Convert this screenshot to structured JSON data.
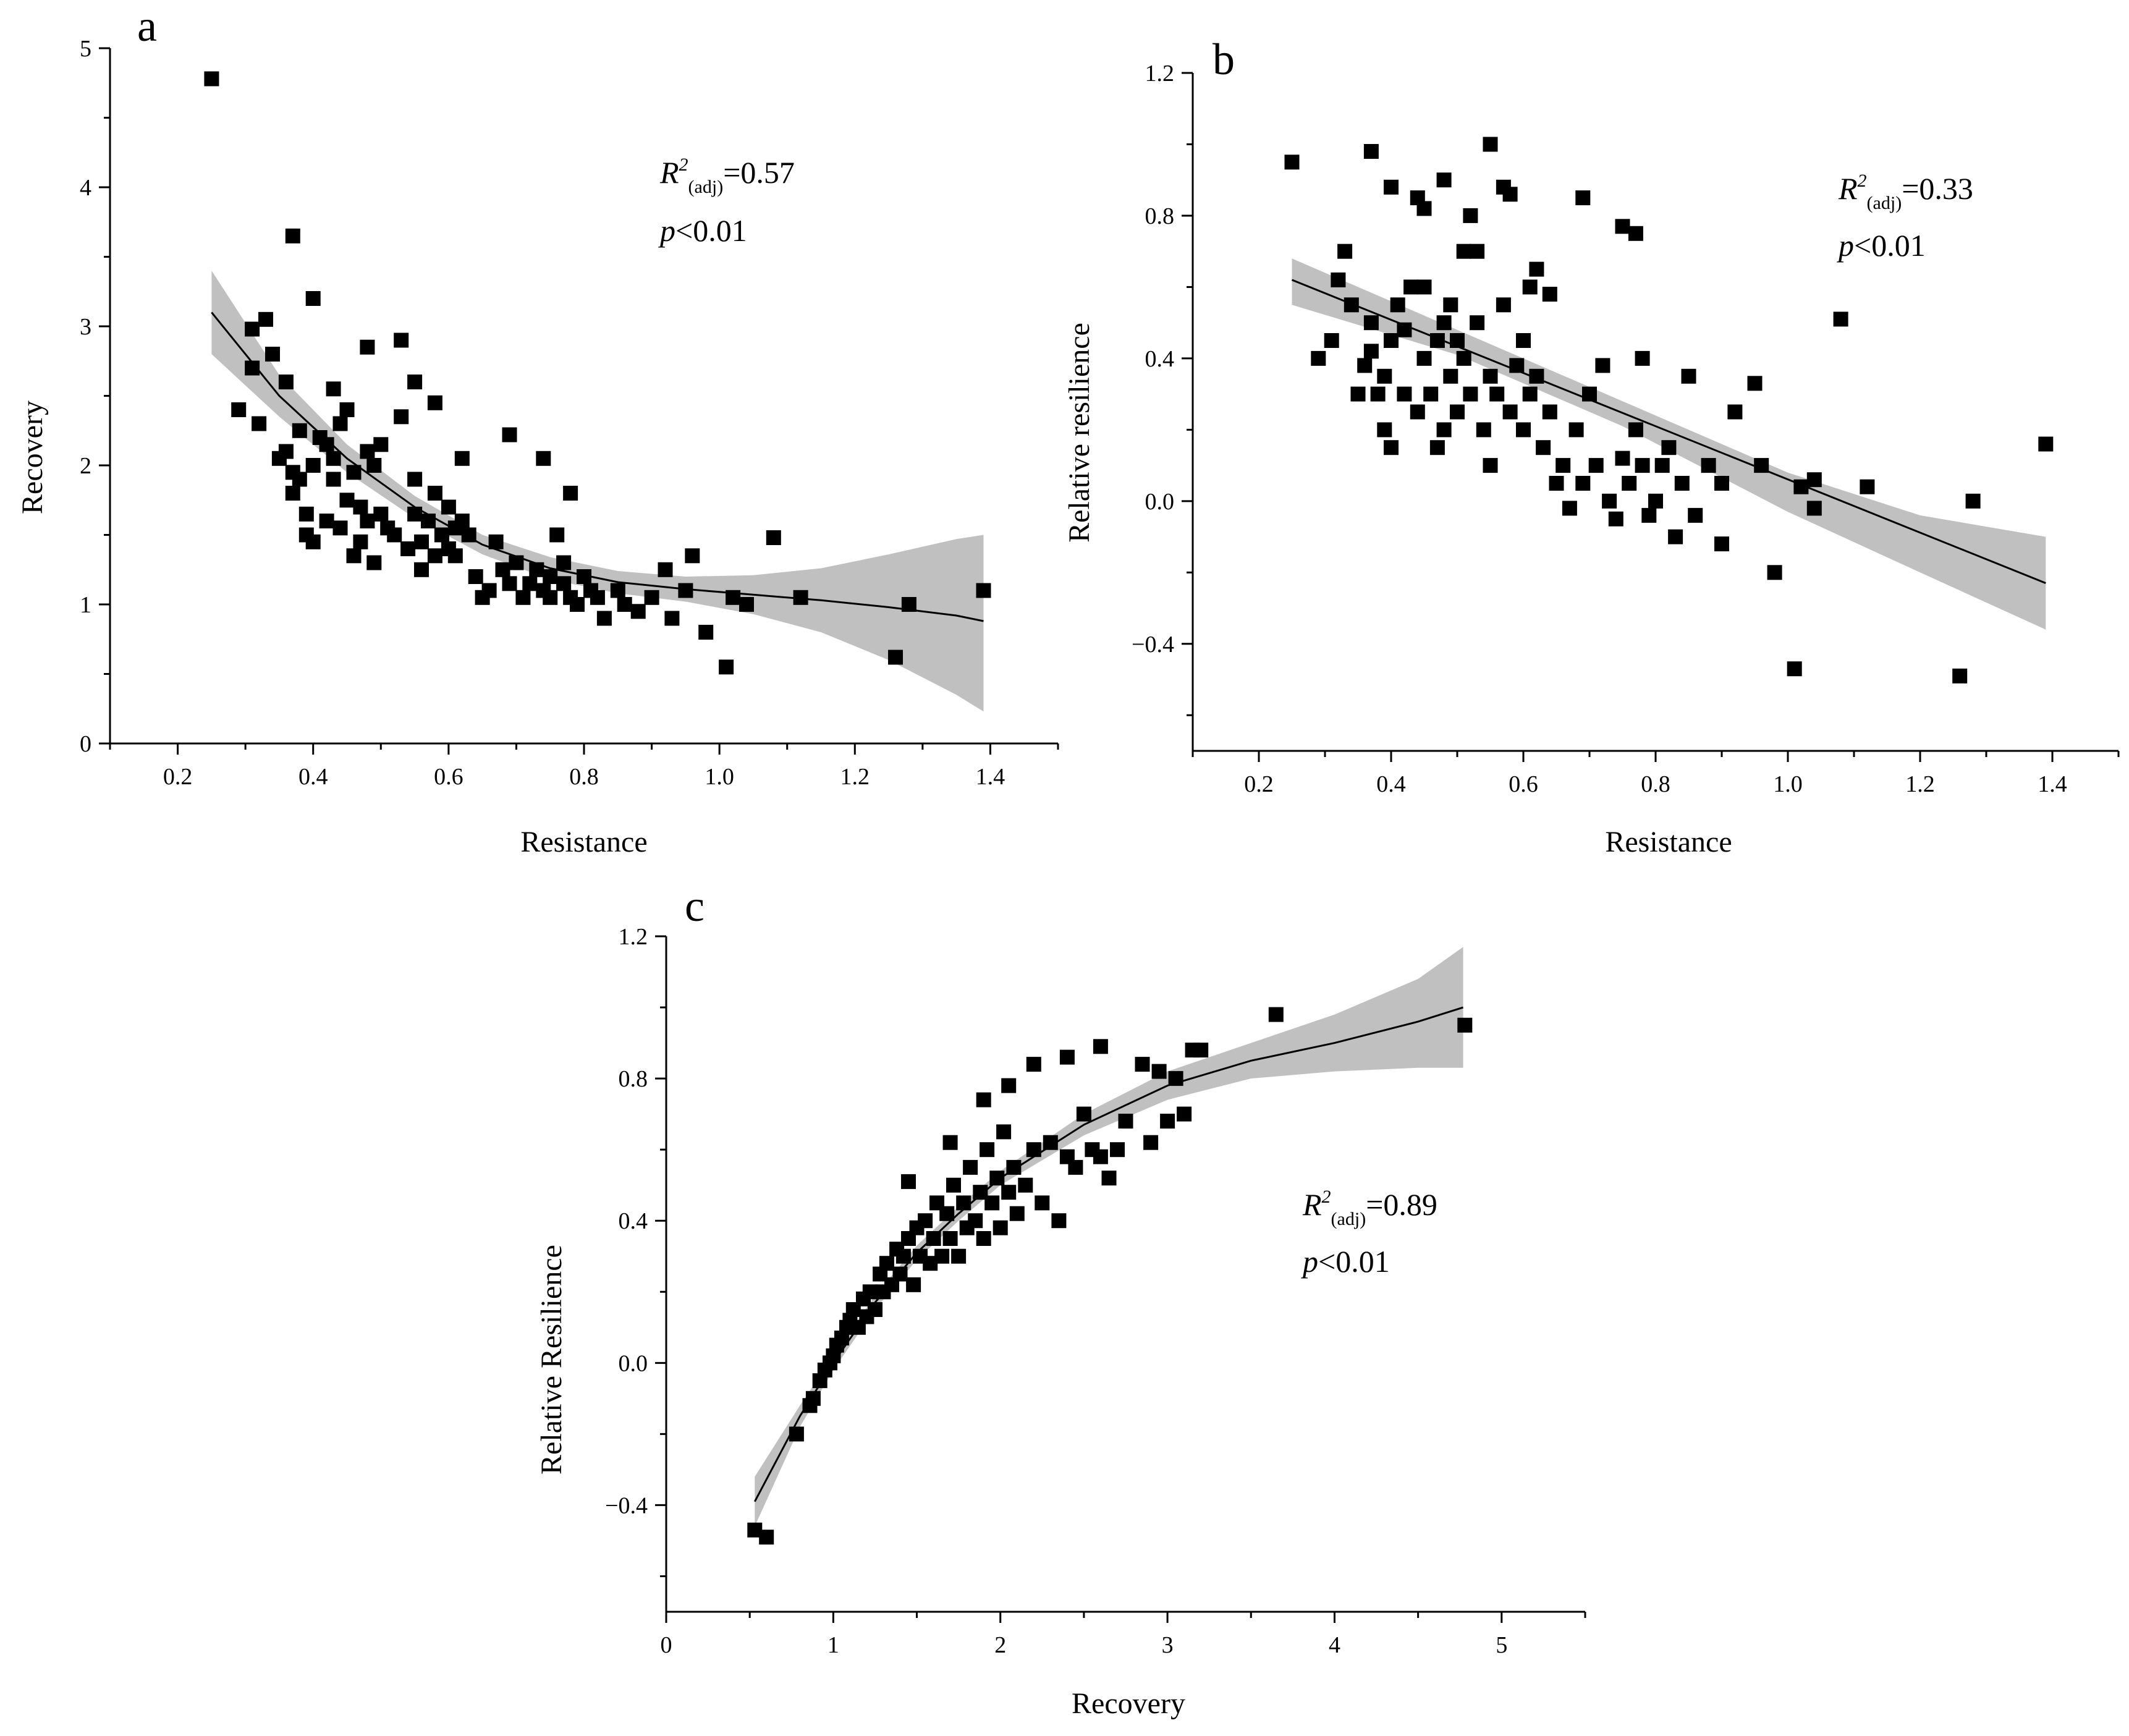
{
  "figure": {
    "colors": {
      "band": "#c0c0c0",
      "point": "#000000",
      "line": "#000000"
    },
    "panels": [
      {
        "id": "a",
        "label": "a",
        "type": "scatter",
        "xlabel": "Resistance",
        "ylabel": "Recovery",
        "xlim": [
          0.1,
          1.5
        ],
        "ylim": [
          0,
          5
        ],
        "xticks": [
          0.2,
          0.4,
          0.6,
          0.8,
          1.0,
          1.2,
          1.4
        ],
        "xtick_labels": [
          "0.2",
          "0.4",
          "0.6",
          "0.8",
          "1.0",
          "1.2",
          "1.4"
        ],
        "yticks": [
          0,
          1,
          2,
          3,
          4,
          5
        ],
        "ytick_labels": [
          "0",
          "1",
          "2",
          "3",
          "4",
          "5"
        ],
        "stat": {
          "r2_prefix": "R",
          "r2_sup": "2",
          "r2_sub": "(adj)",
          "r2_value": "=0.57",
          "p_letter": "p",
          "p_value": "<0.01"
        },
        "fit": {
          "x": [
            0.25,
            0.35,
            0.45,
            0.55,
            0.65,
            0.75,
            0.85,
            0.95,
            1.05,
            1.15,
            1.25,
            1.35,
            1.39
          ],
          "y": [
            3.1,
            2.5,
            2.05,
            1.7,
            1.43,
            1.26,
            1.16,
            1.11,
            1.07,
            1.03,
            0.98,
            0.92,
            0.88
          ]
        },
        "band": {
          "x": [
            0.25,
            0.35,
            0.45,
            0.55,
            0.65,
            0.75,
            0.85,
            0.95,
            1.05,
            1.15,
            1.25,
            1.35,
            1.39
          ],
          "lower": [
            2.8,
            2.35,
            1.95,
            1.62,
            1.36,
            1.18,
            1.08,
            1.02,
            0.93,
            0.8,
            0.6,
            0.35,
            0.23
          ],
          "upper": [
            3.4,
            2.65,
            2.15,
            1.78,
            1.5,
            1.34,
            1.24,
            1.2,
            1.21,
            1.26,
            1.36,
            1.47,
            1.5
          ]
        },
        "points": {
          "x": [
            0.25,
            0.29,
            0.31,
            0.31,
            0.32,
            0.33,
            0.34,
            0.35,
            0.36,
            0.36,
            0.37,
            0.37,
            0.38,
            0.38,
            0.39,
            0.39,
            0.4,
            0.4,
            0.41,
            0.42,
            0.42,
            0.43,
            0.43,
            0.44,
            0.44,
            0.45,
            0.45,
            0.46,
            0.46,
            0.47,
            0.47,
            0.48,
            0.48,
            0.49,
            0.49,
            0.5,
            0.5,
            0.51,
            0.52,
            0.53,
            0.54,
            0.55,
            0.55,
            0.56,
            0.56,
            0.57,
            0.58,
            0.58,
            0.59,
            0.6,
            0.6,
            0.61,
            0.61,
            0.62,
            0.62,
            0.63,
            0.64,
            0.65,
            0.66,
            0.67,
            0.68,
            0.69,
            0.7,
            0.71,
            0.72,
            0.73,
            0.74,
            0.75,
            0.75,
            0.76,
            0.77,
            0.77,
            0.78,
            0.78,
            0.79,
            0.8,
            0.81,
            0.82,
            0.83,
            0.85,
            0.86,
            0.88,
            0.9,
            0.92,
            0.93,
            0.95,
            0.96,
            0.98,
            1.01,
            1.02,
            1.04,
            1.08,
            1.12,
            1.26,
            1.28,
            1.39,
            0.37,
            0.4,
            0.48,
            0.53,
            0.43,
            0.69,
            0.55,
            0.58,
            0.74
          ],
          "y": [
            4.78,
            2.4,
            2.7,
            2.98,
            2.3,
            3.05,
            2.8,
            2.05,
            2.6,
            2.1,
            1.95,
            1.8,
            1.9,
            2.25,
            1.65,
            1.5,
            2.0,
            1.45,
            2.2,
            2.15,
            1.6,
            2.05,
            1.9,
            2.3,
            1.55,
            1.75,
            2.4,
            1.35,
            1.95,
            1.7,
            1.45,
            1.6,
            2.1,
            1.3,
            2.0,
            1.65,
            2.15,
            1.55,
            1.5,
            2.9,
            1.4,
            1.9,
            1.65,
            1.25,
            1.45,
            1.6,
            1.35,
            1.8,
            1.5,
            1.7,
            1.4,
            1.55,
            1.35,
            2.05,
            1.6,
            1.5,
            1.2,
            1.05,
            1.1,
            1.45,
            1.25,
            1.15,
            1.3,
            1.05,
            1.15,
            1.25,
            1.1,
            1.2,
            1.05,
            1.5,
            1.15,
            1.3,
            1.05,
            1.8,
            1.0,
            1.2,
            1.1,
            1.05,
            0.9,
            1.1,
            1.0,
            0.95,
            1.05,
            1.25,
            0.9,
            1.1,
            1.35,
            0.8,
            0.55,
            1.05,
            1.0,
            1.48,
            1.05,
            0.62,
            1.0,
            1.1,
            3.65,
            3.2,
            2.85,
            2.35,
            2.55,
            2.22,
            2.6,
            2.45,
            2.05
          ]
        }
      },
      {
        "id": "b",
        "label": "b",
        "type": "scatter",
        "xlabel": "Resistance",
        "ylabel": "Relative resilience",
        "xlim": [
          0.1,
          1.5
        ],
        "ylim": [
          -0.7,
          1.2
        ],
        "xticks": [
          0.2,
          0.4,
          0.6,
          0.8,
          1.0,
          1.2,
          1.4
        ],
        "xtick_labels": [
          "0.2",
          "0.4",
          "0.6",
          "0.8",
          "1.0",
          "1.2",
          "1.4"
        ],
        "yticks": [
          -0.4,
          0.0,
          0.4,
          0.8,
          1.2
        ],
        "ytick_labels": [
          "−0.4",
          "0.0",
          "0.4",
          "0.8",
          "1.2"
        ],
        "stat": {
          "r2_prefix": "R",
          "r2_sup": "2",
          "r2_sub": "(adj)",
          "r2_value": "=0.33",
          "p_letter": "p",
          "p_value": "<0.01"
        },
        "fit": {
          "x": [
            0.25,
            1.39
          ],
          "y": [
            0.62,
            -0.23
          ]
        },
        "band": {
          "x": [
            0.25,
            0.5,
            0.75,
            1.0,
            1.2,
            1.39
          ],
          "lower": [
            0.55,
            0.41,
            0.21,
            -0.03,
            -0.2,
            -0.36
          ],
          "upper": [
            0.68,
            0.48,
            0.28,
            0.08,
            -0.04,
            -0.1
          ]
        },
        "points": {
          "x": [
            0.25,
            0.29,
            0.31,
            0.32,
            0.33,
            0.34,
            0.35,
            0.36,
            0.37,
            0.37,
            0.38,
            0.39,
            0.39,
            0.4,
            0.4,
            0.41,
            0.42,
            0.42,
            0.43,
            0.44,
            0.45,
            0.45,
            0.46,
            0.47,
            0.47,
            0.48,
            0.48,
            0.49,
            0.49,
            0.5,
            0.5,
            0.51,
            0.52,
            0.53,
            0.53,
            0.54,
            0.55,
            0.55,
            0.56,
            0.57,
            0.58,
            0.59,
            0.6,
            0.6,
            0.61,
            0.61,
            0.62,
            0.63,
            0.64,
            0.65,
            0.66,
            0.67,
            0.68,
            0.69,
            0.7,
            0.71,
            0.72,
            0.73,
            0.74,
            0.75,
            0.76,
            0.77,
            0.78,
            0.78,
            0.79,
            0.8,
            0.81,
            0.82,
            0.83,
            0.84,
            0.85,
            0.86,
            0.88,
            0.9,
            0.9,
            0.92,
            0.95,
            0.96,
            0.98,
            1.01,
            1.02,
            1.04,
            1.04,
            1.08,
            1.12,
            1.26,
            1.28,
            1.39,
            0.37,
            0.4,
            0.44,
            0.48,
            0.52,
            0.55,
            0.57,
            0.62,
            0.69,
            0.75,
            0.77,
            0.64,
            0.51,
            0.58,
            0.45
          ],
          "y": [
            0.95,
            0.4,
            0.45,
            0.62,
            0.7,
            0.55,
            0.3,
            0.38,
            0.42,
            0.5,
            0.3,
            0.2,
            0.35,
            0.45,
            0.15,
            0.55,
            0.48,
            0.3,
            0.6,
            0.25,
            0.4,
            0.6,
            0.3,
            0.45,
            0.15,
            0.5,
            0.2,
            0.35,
            0.55,
            0.25,
            0.45,
            0.4,
            0.3,
            0.7,
            0.5,
            0.2,
            0.35,
            0.1,
            0.3,
            0.55,
            0.25,
            0.38,
            0.45,
            0.2,
            0.3,
            0.6,
            0.35,
            0.15,
            0.25,
            0.05,
            0.1,
            -0.02,
            0.2,
            0.05,
            0.3,
            0.1,
            0.38,
            0.0,
            -0.05,
            0.12,
            0.05,
            0.2,
            0.1,
            0.4,
            -0.04,
            0.0,
            0.1,
            0.15,
            -0.1,
            0.05,
            0.35,
            -0.04,
            0.1,
            0.05,
            -0.12,
            0.25,
            0.33,
            0.1,
            -0.2,
            -0.47,
            0.04,
            0.06,
            -0.02,
            0.51,
            0.04,
            -0.49,
            0.0,
            0.16,
            0.98,
            0.88,
            0.85,
            0.9,
            0.8,
            1.0,
            0.88,
            0.65,
            0.85,
            0.77,
            0.75,
            0.58,
            0.7,
            0.86,
            0.82
          ]
        }
      },
      {
        "id": "c",
        "label": "c",
        "type": "scatter",
        "xlabel": "Recovery",
        "ylabel": "Relative Resilience",
        "xlim": [
          0,
          5.5
        ],
        "ylim": [
          -0.7,
          1.2
        ],
        "xticks": [
          0,
          1,
          2,
          3,
          4,
          5
        ],
        "xtick_labels": [
          "0",
          "1",
          "2",
          "3",
          "4",
          "5"
        ],
        "yticks": [
          -0.4,
          0.0,
          0.4,
          0.8,
          1.2
        ],
        "ytick_labels": [
          "−0.4",
          "0.0",
          "0.4",
          "0.8",
          "1.2"
        ],
        "stat": {
          "r2_prefix": "R",
          "r2_sup": "2",
          "r2_sub": "(adj)",
          "r2_value": "=0.89",
          "p_letter": "p",
          "p_value": "<0.01"
        },
        "fit": {
          "x": [
            0.53,
            0.8,
            1.0,
            1.25,
            1.5,
            1.75,
            2.0,
            2.5,
            3.0,
            3.5,
            4.0,
            4.5,
            4.77
          ],
          "y": [
            -0.39,
            -0.15,
            0.0,
            0.17,
            0.31,
            0.42,
            0.52,
            0.67,
            0.78,
            0.85,
            0.9,
            0.96,
            1.0
          ]
        },
        "band": {
          "x": [
            0.53,
            0.8,
            1.0,
            1.25,
            1.5,
            1.75,
            2.0,
            2.5,
            3.0,
            3.5,
            4.0,
            4.5,
            4.77
          ],
          "lower": [
            -0.46,
            -0.18,
            -0.02,
            0.15,
            0.29,
            0.4,
            0.5,
            0.64,
            0.74,
            0.8,
            0.82,
            0.83,
            0.83
          ],
          "upper": [
            -0.32,
            -0.12,
            0.02,
            0.19,
            0.33,
            0.44,
            0.54,
            0.7,
            0.82,
            0.9,
            0.98,
            1.08,
            1.17
          ]
        },
        "points": {
          "x": [
            0.53,
            0.6,
            0.78,
            0.86,
            0.88,
            0.92,
            0.95,
            0.98,
            1.0,
            1.02,
            1.05,
            1.08,
            1.1,
            1.12,
            1.15,
            1.18,
            1.2,
            1.22,
            1.25,
            1.28,
            1.3,
            1.32,
            1.35,
            1.38,
            1.4,
            1.42,
            1.45,
            1.48,
            1.5,
            1.52,
            1.55,
            1.58,
            1.6,
            1.62,
            1.65,
            1.68,
            1.7,
            1.72,
            1.75,
            1.78,
            1.8,
            1.82,
            1.85,
            1.88,
            1.9,
            1.92,
            1.95,
            1.98,
            2.0,
            2.02,
            2.05,
            2.08,
            2.1,
            2.15,
            2.2,
            2.25,
            2.3,
            2.35,
            2.4,
            2.45,
            2.5,
            2.55,
            2.6,
            2.65,
            2.7,
            2.75,
            2.85,
            2.9,
            2.95,
            3.0,
            3.05,
            3.1,
            3.15,
            3.2,
            3.65,
            4.78,
            1.9,
            2.05,
            2.2,
            2.4,
            2.6,
            1.45,
            1.7
          ],
          "y": [
            -0.47,
            -0.49,
            -0.2,
            -0.12,
            -0.1,
            -0.05,
            -0.02,
            0.0,
            0.02,
            0.05,
            0.07,
            0.1,
            0.12,
            0.15,
            0.1,
            0.18,
            0.13,
            0.2,
            0.15,
            0.25,
            0.2,
            0.28,
            0.22,
            0.32,
            0.25,
            0.3,
            0.35,
            0.22,
            0.38,
            0.3,
            0.4,
            0.28,
            0.35,
            0.45,
            0.3,
            0.42,
            0.35,
            0.5,
            0.3,
            0.45,
            0.38,
            0.55,
            0.4,
            0.48,
            0.35,
            0.6,
            0.45,
            0.52,
            0.38,
            0.65,
            0.48,
            0.55,
            0.42,
            0.5,
            0.6,
            0.45,
            0.62,
            0.4,
            0.58,
            0.55,
            0.7,
            0.6,
            0.58,
            0.52,
            0.6,
            0.68,
            0.84,
            0.62,
            0.82,
            0.68,
            0.8,
            0.7,
            0.88,
            0.88,
            0.98,
            0.95,
            0.74,
            0.78,
            0.84,
            0.86,
            0.89,
            0.51,
            0.62
          ]
        }
      }
    ]
  }
}
